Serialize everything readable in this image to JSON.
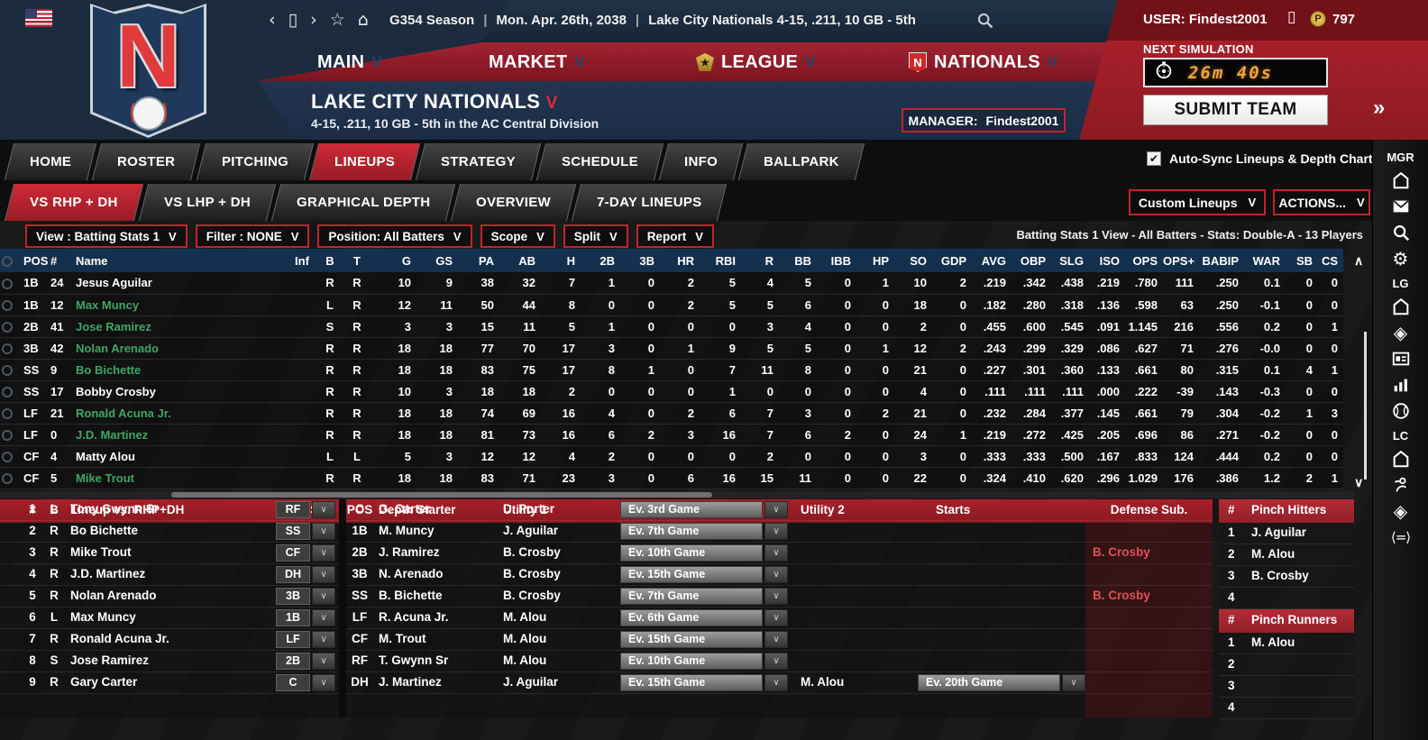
{
  "colors": {
    "accent_red": "#c2232e",
    "header_navy": "#15304e",
    "player_green": "#3fa565",
    "timer_orange": "#f2a33c"
  },
  "topbar": {
    "nav_icons": [
      "back",
      "window",
      "forward",
      "star",
      "home"
    ],
    "session": "G354 Season",
    "date": "Mon. Apr. 26th, 2038",
    "team_status": "Lake City Nationals  4-15, .211, 10 GB - 5th",
    "user_label": "USER: Findest2001",
    "coin_symbol": "P",
    "coin_count": "797"
  },
  "main_nav": [
    {
      "label": "MAIN",
      "icon": null
    },
    {
      "label": "MARKET",
      "icon": null
    },
    {
      "label": "LEAGUE",
      "icon": "league-badge"
    },
    {
      "label": "NATIONALS",
      "icon": "team-mini-logo"
    }
  ],
  "team": {
    "name": "LAKE CITY NATIONALS",
    "record_line": "4-15, .211, 10 GB - 5th in the AC Central Division",
    "manager_label": "MANAGER:",
    "manager_name": "Findest2001",
    "logo_letter": "N"
  },
  "sim": {
    "next_label": "NEXT SIMULATION",
    "timer": "26m 40s",
    "submit": "SUBMIT TEAM"
  },
  "tabs": {
    "main": [
      "HOME",
      "ROSTER",
      "PITCHING",
      "LINEUPS",
      "STRATEGY",
      "SCHEDULE",
      "INFO",
      "BALLPARK"
    ],
    "active_main": "LINEUPS",
    "autosync_label": "Auto-Sync Lineups & Depth Charts",
    "autosync_checked": true,
    "sub": [
      "VS RHP + DH",
      "VS LHP + DH",
      "GRAPHICAL DEPTH",
      "OVERVIEW",
      "7-DAY LINEUPS"
    ],
    "active_sub": "VS RHP + DH",
    "custom_lineups": "Custom Lineups",
    "actions": "ACTIONS..."
  },
  "filters": {
    "dropdowns": [
      "View : Batting Stats 1",
      "Filter : NONE",
      "Position: All Batters",
      "Scope",
      "Split",
      "Report"
    ],
    "summary": "Batting Stats 1 View - All Batters - Stats: Double-A - 13 Players"
  },
  "stats_table": {
    "columns": [
      "POS",
      "#",
      "Name",
      "Inf",
      "B",
      "T",
      "G",
      "GS",
      "PA",
      "AB",
      "H",
      "2B",
      "3B",
      "HR",
      "RBI",
      "R",
      "BB",
      "IBB",
      "HP",
      "SO",
      "GDP",
      "AVG",
      "OBP",
      "SLG",
      "ISO",
      "OPS",
      "OPS+",
      "BABIP",
      "WAR",
      "SB",
      "CS"
    ],
    "rows": [
      {
        "pos": "1B",
        "num": "24",
        "name": "Jesus Aguilar",
        "green": false,
        "b": "R",
        "t": "R",
        "stats": [
          "10",
          "9",
          "38",
          "32",
          "7",
          "1",
          "0",
          "2",
          "5",
          "4",
          "5",
          "0",
          "1",
          "10",
          "2",
          ".219",
          ".342",
          ".438",
          ".219",
          ".780",
          "111",
          ".250",
          "0.1",
          "0",
          "0"
        ]
      },
      {
        "pos": "1B",
        "num": "12",
        "name": "Max Muncy",
        "green": true,
        "b": "L",
        "t": "R",
        "stats": [
          "12",
          "11",
          "50",
          "44",
          "8",
          "0",
          "0",
          "2",
          "5",
          "5",
          "6",
          "0",
          "0",
          "18",
          "0",
          ".182",
          ".280",
          ".318",
          ".136",
          ".598",
          "63",
          ".250",
          "-0.1",
          "0",
          "0"
        ]
      },
      {
        "pos": "2B",
        "num": "41",
        "name": "Jose Ramirez",
        "green": true,
        "b": "S",
        "t": "R",
        "stats": [
          "3",
          "3",
          "15",
          "11",
          "5",
          "1",
          "0",
          "0",
          "0",
          "3",
          "4",
          "0",
          "0",
          "2",
          "0",
          ".455",
          ".600",
          ".545",
          ".091",
          "1.145",
          "216",
          ".556",
          "0.2",
          "0",
          "1"
        ]
      },
      {
        "pos": "3B",
        "num": "42",
        "name": "Nolan Arenado",
        "green": true,
        "b": "R",
        "t": "R",
        "stats": [
          "18",
          "18",
          "77",
          "70",
          "17",
          "3",
          "0",
          "1",
          "9",
          "5",
          "5",
          "0",
          "1",
          "12",
          "2",
          ".243",
          ".299",
          ".329",
          ".086",
          ".627",
          "71",
          ".276",
          "-0.0",
          "0",
          "0"
        ]
      },
      {
        "pos": "SS",
        "num": "9",
        "name": "Bo Bichette",
        "green": true,
        "b": "R",
        "t": "R",
        "stats": [
          "18",
          "18",
          "83",
          "75",
          "17",
          "8",
          "1",
          "0",
          "7",
          "11",
          "8",
          "0",
          "0",
          "21",
          "0",
          ".227",
          ".301",
          ".360",
          ".133",
          ".661",
          "80",
          ".315",
          "0.1",
          "4",
          "1"
        ]
      },
      {
        "pos": "SS",
        "num": "17",
        "name": "Bobby Crosby",
        "green": false,
        "b": "R",
        "t": "R",
        "stats": [
          "10",
          "3",
          "18",
          "18",
          "2",
          "0",
          "0",
          "0",
          "1",
          "0",
          "0",
          "0",
          "0",
          "4",
          "0",
          ".111",
          ".111",
          ".111",
          ".000",
          ".222",
          "-39",
          ".143",
          "-0.3",
          "0",
          "0"
        ]
      },
      {
        "pos": "LF",
        "num": "21",
        "name": "Ronald Acuna Jr.",
        "green": true,
        "b": "R",
        "t": "R",
        "stats": [
          "18",
          "18",
          "74",
          "69",
          "16",
          "4",
          "0",
          "2",
          "6",
          "7",
          "3",
          "0",
          "2",
          "21",
          "0",
          ".232",
          ".284",
          ".377",
          ".145",
          ".661",
          "79",
          ".304",
          "-0.2",
          "1",
          "3"
        ]
      },
      {
        "pos": "LF",
        "num": "0",
        "name": "J.D. Martinez",
        "green": true,
        "b": "R",
        "t": "R",
        "stats": [
          "18",
          "18",
          "81",
          "73",
          "16",
          "6",
          "2",
          "3",
          "16",
          "7",
          "6",
          "2",
          "0",
          "24",
          "1",
          ".219",
          ".272",
          ".425",
          ".205",
          ".696",
          "86",
          ".271",
          "-0.2",
          "0",
          "0"
        ]
      },
      {
        "pos": "CF",
        "num": "4",
        "name": "Matty Alou",
        "green": false,
        "b": "L",
        "t": "L",
        "stats": [
          "5",
          "3",
          "12",
          "12",
          "4",
          "2",
          "0",
          "0",
          "0",
          "2",
          "0",
          "0",
          "0",
          "3",
          "0",
          ".333",
          ".333",
          ".500",
          ".167",
          ".833",
          "124",
          ".444",
          "0.2",
          "0",
          "0"
        ]
      },
      {
        "pos": "CF",
        "num": "5",
        "name": "Mike Trout",
        "green": true,
        "b": "R",
        "t": "R",
        "stats": [
          "18",
          "18",
          "83",
          "71",
          "23",
          "3",
          "0",
          "6",
          "16",
          "15",
          "11",
          "0",
          "0",
          "22",
          "0",
          ".324",
          ".410",
          ".620",
          ".296",
          "1.029",
          "176",
          ".386",
          "1.2",
          "2",
          "1"
        ]
      }
    ]
  },
  "lineup_section": {
    "lineup_header": {
      "num": "#",
      "b": "B",
      "title": "Lineup vs. RHP+DH",
      "pos": "POS"
    },
    "lineup_rows": [
      {
        "num": "1",
        "b": "L",
        "name": "Tony Gwynn Sr",
        "pos": "RF"
      },
      {
        "num": "2",
        "b": "R",
        "name": "Bo Bichette",
        "pos": "SS"
      },
      {
        "num": "3",
        "b": "R",
        "name": "Mike Trout",
        "pos": "CF"
      },
      {
        "num": "4",
        "b": "R",
        "name": "J.D. Martinez",
        "pos": "DH"
      },
      {
        "num": "5",
        "b": "R",
        "name": "Nolan Arenado",
        "pos": "3B"
      },
      {
        "num": "6",
        "b": "L",
        "name": "Max Muncy",
        "pos": "1B"
      },
      {
        "num": "7",
        "b": "R",
        "name": "Ronald Acuna Jr.",
        "pos": "LF"
      },
      {
        "num": "8",
        "b": "S",
        "name": "Jose Ramirez",
        "pos": "2B"
      },
      {
        "num": "9",
        "b": "R",
        "name": "Gary Carter",
        "pos": "C"
      }
    ],
    "depth_header": {
      "pos": "POS",
      "starter": "Depth Starter",
      "utility1": "Utility 1",
      "starts1": "Starts",
      "utility2": "Utility 2",
      "starts2": "Starts",
      "defense": "Defense Sub."
    },
    "depth_rows": [
      {
        "pos": "C",
        "starter": "G. Carter",
        "utility1": "D. Porter",
        "starts1": "Ev. 3rd Game",
        "utility2": "",
        "starts2": "",
        "defense_sub": ""
      },
      {
        "pos": "1B",
        "starter": "M. Muncy",
        "utility1": "J. Aguilar",
        "starts1": "Ev. 7th Game",
        "utility2": "",
        "starts2": "",
        "defense_sub": ""
      },
      {
        "pos": "2B",
        "starter": "J. Ramirez",
        "utility1": "B. Crosby",
        "starts1": "Ev. 10th Game",
        "utility2": "",
        "starts2": "",
        "defense_sub": "B. Crosby"
      },
      {
        "pos": "3B",
        "starter": "N. Arenado",
        "utility1": "B. Crosby",
        "starts1": "Ev. 15th Game",
        "utility2": "",
        "starts2": "",
        "defense_sub": ""
      },
      {
        "pos": "SS",
        "starter": "B. Bichette",
        "utility1": "B. Crosby",
        "starts1": "Ev. 7th Game",
        "utility2": "",
        "starts2": "",
        "defense_sub": "B. Crosby"
      },
      {
        "pos": "LF",
        "starter": "R. Acuna Jr.",
        "utility1": "M. Alou",
        "starts1": "Ev. 6th Game",
        "utility2": "",
        "starts2": "",
        "defense_sub": ""
      },
      {
        "pos": "CF",
        "starter": "M. Trout",
        "utility1": "M. Alou",
        "starts1": "Ev. 15th Game",
        "utility2": "",
        "starts2": "",
        "defense_sub": ""
      },
      {
        "pos": "RF",
        "starter": "T. Gwynn Sr",
        "utility1": "M. Alou",
        "starts1": "Ev. 10th Game",
        "utility2": "",
        "starts2": "",
        "defense_sub": ""
      },
      {
        "pos": "DH",
        "starter": "J. Martinez",
        "utility1": "J. Aguilar",
        "starts1": "Ev. 15th Game",
        "utility2": "M. Alou",
        "starts2": "Ev. 20th Game",
        "defense_sub": ""
      }
    ],
    "pinch": {
      "col_num": "#",
      "hitters_title": "Pinch Hitters",
      "hitters": [
        {
          "num": "1",
          "name": "J. Aguilar"
        },
        {
          "num": "2",
          "name": "M. Alou"
        },
        {
          "num": "3",
          "name": "B. Crosby"
        },
        {
          "num": "4",
          "name": ""
        }
      ],
      "runners_title": "Pinch Runners",
      "runners": [
        {
          "num": "1",
          "name": "M. Alou"
        },
        {
          "num": "2",
          "name": ""
        },
        {
          "num": "3",
          "name": ""
        },
        {
          "num": "4",
          "name": ""
        }
      ]
    }
  },
  "sidebar": {
    "collapse_chevron": "chevron-double-right",
    "groups": [
      {
        "label": "MGR",
        "icons": [
          "home",
          "mail",
          "search",
          "gear"
        ]
      },
      {
        "label": "LG",
        "icons": [
          "home",
          "target",
          "card",
          "chart",
          "baseball"
        ]
      },
      {
        "label": "LC",
        "icons": [
          "home",
          "person",
          "target",
          "compare"
        ]
      }
    ]
  }
}
